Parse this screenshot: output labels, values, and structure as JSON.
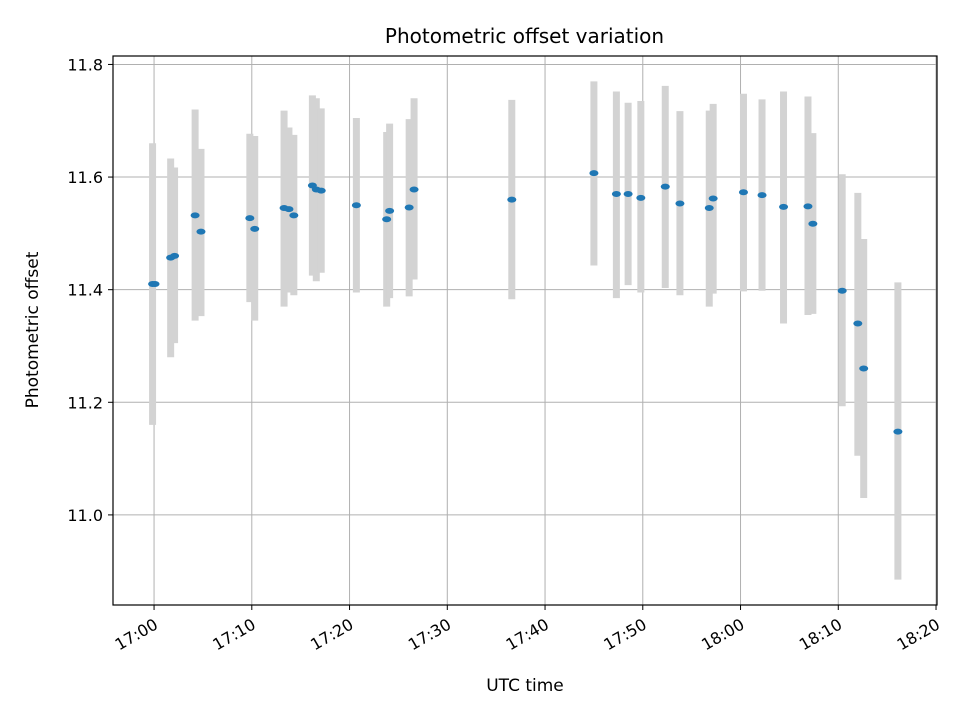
{
  "chart_data": {
    "type": "scatter",
    "title": "Photometric offset variation",
    "xlabel": "UTC time",
    "ylabel": "Photometric offset",
    "x_ticks": [
      "17:00",
      "17:10",
      "17:20",
      "17:30",
      "17:40",
      "17:50",
      "18:00",
      "18:10",
      "18:20"
    ],
    "x_tick_minutes": [
      0,
      10,
      20,
      30,
      40,
      50,
      60,
      70,
      80
    ],
    "xlim_minutes": [
      -4.2,
      80.1
    ],
    "ylim": [
      10.84,
      11.815
    ],
    "y_ticks": [
      11.0,
      11.2,
      11.4,
      11.6,
      11.8
    ],
    "y_tick_labels": [
      "11.0",
      "11.2",
      "11.4",
      "11.6",
      "11.8"
    ],
    "grid": true,
    "point_color": "#1f77b4",
    "errorbar_color": "#d3d3d3",
    "points": [
      {
        "t": -0.15,
        "y": 11.41,
        "low": 11.16,
        "high": 11.66
      },
      {
        "t": 0.1,
        "y": 11.41,
        "low": 11.41,
        "high": 11.41
      },
      {
        "t": 1.7,
        "y": 11.457,
        "low": 11.28,
        "high": 11.633
      },
      {
        "t": 2.1,
        "y": 11.46,
        "low": 11.305,
        "high": 11.617
      },
      {
        "t": 4.2,
        "y": 11.532,
        "low": 11.345,
        "high": 11.72
      },
      {
        "t": 4.8,
        "y": 11.503,
        "low": 11.353,
        "high": 11.65
      },
      {
        "t": 9.8,
        "y": 11.527,
        "low": 11.378,
        "high": 11.677
      },
      {
        "t": 10.3,
        "y": 11.508,
        "low": 11.345,
        "high": 11.673
      },
      {
        "t": 13.3,
        "y": 11.545,
        "low": 11.37,
        "high": 11.718
      },
      {
        "t": 13.8,
        "y": 11.543,
        "low": 11.395,
        "high": 11.688
      },
      {
        "t": 14.3,
        "y": 11.532,
        "low": 11.39,
        "high": 11.675
      },
      {
        "t": 16.2,
        "y": 11.585,
        "low": 11.425,
        "high": 11.745
      },
      {
        "t": 16.6,
        "y": 11.578,
        "low": 11.415,
        "high": 11.74
      },
      {
        "t": 17.1,
        "y": 11.576,
        "low": 11.43,
        "high": 11.722
      },
      {
        "t": 20.7,
        "y": 11.55,
        "low": 11.395,
        "high": 11.705
      },
      {
        "t": 23.8,
        "y": 11.525,
        "low": 11.37,
        "high": 11.68
      },
      {
        "t": 24.1,
        "y": 11.54,
        "low": 11.385,
        "high": 11.695
      },
      {
        "t": 26.1,
        "y": 11.546,
        "low": 11.388,
        "high": 11.703
      },
      {
        "t": 26.6,
        "y": 11.578,
        "low": 11.418,
        "high": 11.74
      },
      {
        "t": 36.6,
        "y": 11.56,
        "low": 11.383,
        "high": 11.737
      },
      {
        "t": 45.0,
        "y": 11.607,
        "low": 11.443,
        "high": 11.77
      },
      {
        "t": 47.3,
        "y": 11.57,
        "low": 11.385,
        "high": 11.752
      },
      {
        "t": 48.5,
        "y": 11.57,
        "low": 11.408,
        "high": 11.732
      },
      {
        "t": 49.8,
        "y": 11.563,
        "low": 11.395,
        "high": 11.735
      },
      {
        "t": 52.3,
        "y": 11.583,
        "low": 11.403,
        "high": 11.762
      },
      {
        "t": 53.8,
        "y": 11.553,
        "low": 11.39,
        "high": 11.717
      },
      {
        "t": 56.8,
        "y": 11.545,
        "low": 11.37,
        "high": 11.718
      },
      {
        "t": 57.2,
        "y": 11.562,
        "low": 11.393,
        "high": 11.73
      },
      {
        "t": 60.3,
        "y": 11.573,
        "low": 11.397,
        "high": 11.748
      },
      {
        "t": 62.2,
        "y": 11.568,
        "low": 11.398,
        "high": 11.738
      },
      {
        "t": 64.4,
        "y": 11.547,
        "low": 11.34,
        "high": 11.752
      },
      {
        "t": 66.9,
        "y": 11.548,
        "low": 11.355,
        "high": 11.743
      },
      {
        "t": 67.4,
        "y": 11.517,
        "low": 11.357,
        "high": 11.678
      },
      {
        "t": 70.4,
        "y": 11.398,
        "low": 11.193,
        "high": 11.605
      },
      {
        "t": 72.0,
        "y": 11.34,
        "low": 11.105,
        "high": 11.572
      },
      {
        "t": 72.6,
        "y": 11.26,
        "low": 11.03,
        "high": 11.49
      },
      {
        "t": 76.1,
        "y": 11.148,
        "low": 10.885,
        "high": 11.413
      }
    ]
  }
}
